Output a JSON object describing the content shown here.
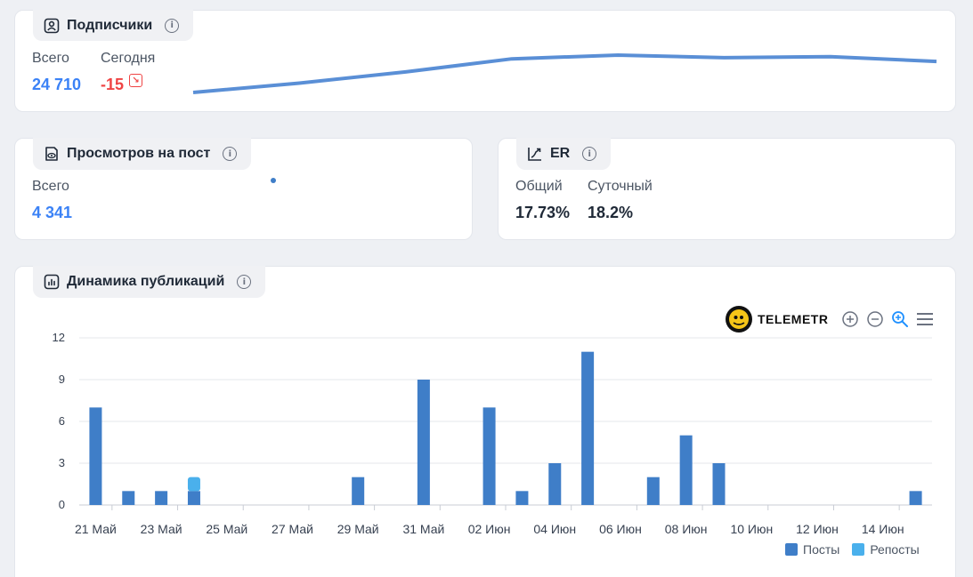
{
  "subscribers": {
    "title": "Подписчики",
    "total_label": "Всего",
    "total_value": "24 710",
    "today_label": "Сегодня",
    "today_value": "-15",
    "sparkline": [
      0,
      0.25,
      0.55,
      0.9,
      1.0,
      0.93,
      0.96,
      0.83
    ]
  },
  "views": {
    "title": "Просмотров на пост",
    "total_label": "Всего",
    "total_value": "4 341"
  },
  "er": {
    "title": "ER",
    "overall_label": "Общий",
    "overall_value": "17.73%",
    "daily_label": "Суточный",
    "daily_value": "18.2%"
  },
  "publications": {
    "title": "Динамика публикаций"
  },
  "toolbar": {
    "brand": "TELEMETR",
    "zoom_in_icon": "zoom-in-icon",
    "zoom_out_icon": "zoom-out-icon",
    "zoom_reset_icon": "magnify-icon",
    "menu_icon": "menu-icon"
  },
  "colors": {
    "posts": "#3f7ec8",
    "reposts": "#4ab0ec",
    "accent": "#3b82f6",
    "negative": "#ef4444"
  },
  "chart_data": {
    "type": "bar",
    "stacked": true,
    "grid": true,
    "legend_position": "bottom-right",
    "ylim": [
      0,
      12
    ],
    "yticks": [
      "0",
      "3",
      "6",
      "9",
      "12"
    ],
    "x": [
      "21 Май",
      "22 Май",
      "23 Май",
      "24 Май",
      "25 Май",
      "26 Май",
      "27 Май",
      "28 Май",
      "29 Май",
      "30 Май",
      "31 Май",
      "01 Июн",
      "02 Июн",
      "03 Июн",
      "04 Июн",
      "05 Июн",
      "06 Июн",
      "07 Июн",
      "08 Июн",
      "09 Июн",
      "10 Июн",
      "11 Июн",
      "12 Июн",
      "13 Июн",
      "14 Июн",
      "15 Июн"
    ],
    "xtick_labels": [
      "21 Май",
      "23 Май",
      "25 Май",
      "27 Май",
      "29 Май",
      "31 Май",
      "02 Июн",
      "04 Июн",
      "06 Июн",
      "08 Июн",
      "10 Июн",
      "12 Июн",
      "14 Июн"
    ],
    "series": [
      {
        "name": "Посты",
        "values": [
          7,
          1,
          1,
          1,
          0,
          0,
          0,
          0,
          2,
          0,
          9,
          0,
          7,
          1,
          3,
          11,
          0,
          2,
          5,
          3,
          0,
          0,
          0,
          0,
          0,
          1
        ]
      },
      {
        "name": "Репосты",
        "values": [
          0,
          0,
          0,
          1,
          0,
          0,
          0,
          0,
          0,
          0,
          0,
          0,
          0,
          0,
          0,
          0,
          0,
          0,
          0,
          0,
          0,
          0,
          0,
          0,
          0,
          0
        ]
      }
    ]
  }
}
